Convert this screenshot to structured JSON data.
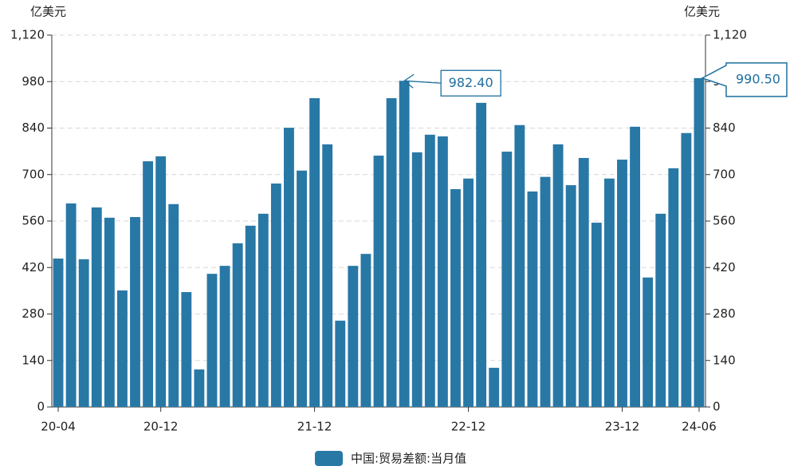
{
  "chart_data": {
    "type": "bar",
    "y_label": "亿美元",
    "y2_label": "亿美元",
    "categories": [
      "20-04",
      null,
      null,
      null,
      null,
      null,
      null,
      null,
      "20-12",
      null,
      null,
      null,
      null,
      null,
      null,
      null,
      null,
      null,
      null,
      null,
      "21-12",
      null,
      null,
      null,
      null,
      null,
      null,
      null,
      null,
      null,
      null,
      null,
      "22-12",
      null,
      null,
      null,
      null,
      null,
      null,
      null,
      null,
      null,
      null,
      null,
      "23-12",
      null,
      null,
      null,
      null,
      null,
      "24-06"
    ],
    "series": [
      {
        "name": "中国:贸易差额:当月值",
        "color": "#2878a6",
        "values": [
          447,
          613,
          445,
          601,
          570,
          351,
          572,
          740,
          755,
          611,
          346,
          113,
          401,
          425,
          493,
          546,
          582,
          673,
          841,
          712,
          930,
          791,
          260,
          425,
          461,
          757,
          930,
          982.4,
          767,
          820,
          815,
          656,
          688,
          916,
          118,
          769,
          849,
          649,
          693,
          791,
          668,
          750,
          555,
          688,
          745,
          844,
          390,
          582,
          719,
          825,
          990.5
        ],
        "value_labels": [
          null,
          null,
          null,
          null,
          null,
          null,
          null,
          null,
          null,
          null,
          null,
          null,
          null,
          null,
          null,
          null,
          null,
          null,
          null,
          null,
          null,
          null,
          null,
          null,
          null,
          null,
          null,
          "982.40",
          null,
          null,
          null,
          null,
          null,
          null,
          null,
          null,
          null,
          null,
          null,
          null,
          null,
          null,
          null,
          null,
          null,
          null,
          null,
          null,
          null,
          null,
          "990.50"
        ]
      }
    ],
    "ylim": [
      0,
      1120
    ],
    "yticks": [
      0,
      140,
      280,
      420,
      560,
      700,
      840,
      980,
      {
        "value": 1120,
        "label": "1,120"
      }
    ],
    "y2lim": [
      0,
      1120
    ],
    "y2ticks": [
      0,
      140,
      280,
      420,
      560,
      700,
      840,
      980,
      {
        "value": 1120,
        "label": "1,120"
      }
    ],
    "grid": true,
    "legend": "bottom"
  }
}
